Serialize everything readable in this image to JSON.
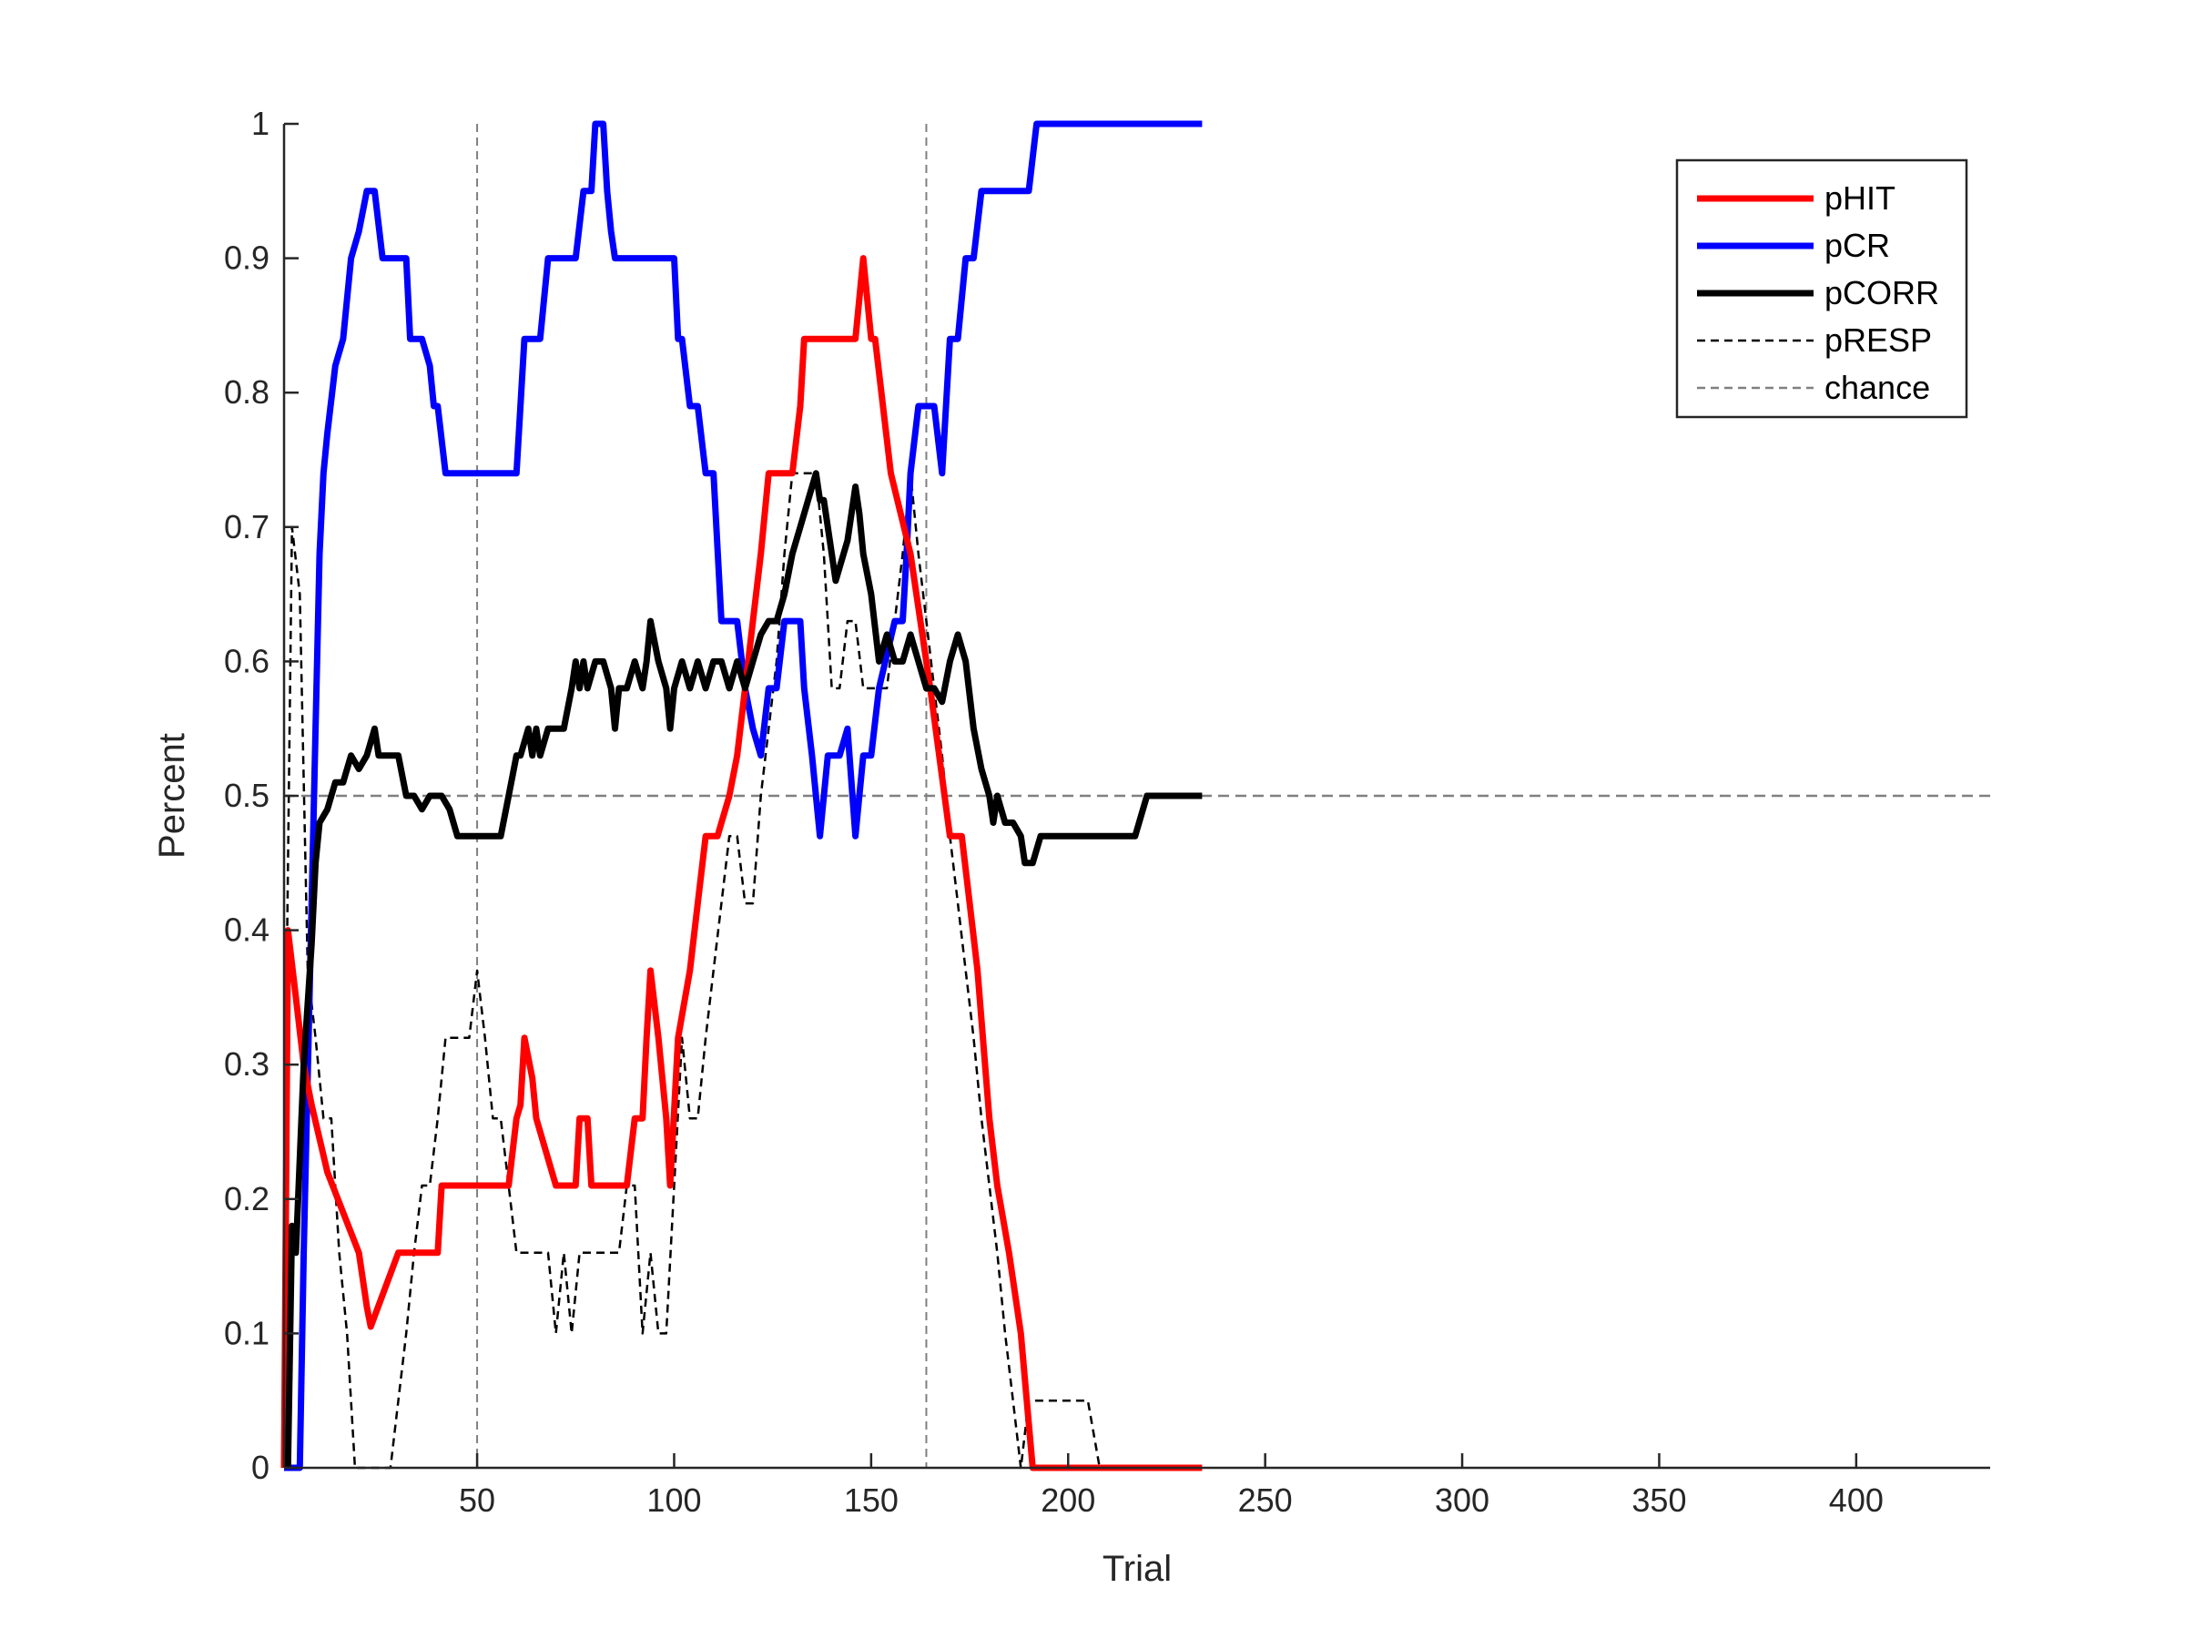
{
  "chart_data": {
    "type": "line",
    "xlabel": "Trial",
    "ylabel": "Percent",
    "xlim": [
      1,
      434
    ],
    "ylim": [
      0,
      1
    ],
    "xticks": [
      50,
      100,
      150,
      200,
      250,
      300,
      350,
      400
    ],
    "yticks": [
      0,
      0.1,
      0.2,
      0.3,
      0.4,
      0.5,
      0.6,
      0.7,
      0.8,
      0.9,
      1
    ],
    "grid": false,
    "legend_position": "top-right",
    "vlines": [
      50,
      164
    ],
    "series": [
      {
        "name": "pHIT",
        "color": "#ff0000",
        "style": "solid",
        "x": [
          1,
          2,
          4,
          6,
          8,
          12,
          16,
          20,
          22,
          23,
          30,
          40,
          41,
          50,
          58,
          60,
          61,
          62,
          64,
          65,
          70,
          75,
          76,
          78,
          79,
          84,
          85,
          88,
          90,
          92,
          93,
          94,
          96,
          98,
          99,
          101,
          104,
          106,
          108,
          110,
          111,
          114,
          116,
          118,
          120,
          122,
          124,
          126,
          130,
          132,
          133,
          140,
          146,
          148,
          150,
          151,
          155,
          160,
          165,
          170,
          173,
          175,
          177,
          180,
          182,
          185,
          188,
          191,
          200,
          210,
          220,
          234
        ],
        "y": [
          0,
          0.4,
          0.35,
          0.3,
          0.27,
          0.22,
          0.19,
          0.16,
          0.12,
          0.105,
          0.16,
          0.16,
          0.21,
          0.21,
          0.21,
          0.26,
          0.27,
          0.32,
          0.29,
          0.26,
          0.21,
          0.21,
          0.26,
          0.26,
          0.21,
          0.21,
          0.21,
          0.21,
          0.26,
          0.26,
          0.32,
          0.37,
          0.32,
          0.26,
          0.21,
          0.32,
          0.37,
          0.42,
          0.47,
          0.47,
          0.47,
          0.5,
          0.53,
          0.58,
          0.63,
          0.68,
          0.74,
          0.74,
          0.74,
          0.79,
          0.84,
          0.84,
          0.84,
          0.9,
          0.84,
          0.84,
          0.74,
          0.68,
          0.58,
          0.47,
          0.47,
          0.42,
          0.37,
          0.26,
          0.21,
          0.16,
          0.1,
          0,
          0,
          0,
          0,
          0
        ]
      },
      {
        "name": "pCR",
        "color": "#0000ff",
        "style": "solid",
        "x": [
          1,
          5,
          6,
          8,
          9,
          10,
          11,
          12,
          14,
          16,
          18,
          20,
          22,
          24,
          26,
          28,
          32,
          33,
          36,
          38,
          39,
          40,
          42,
          44,
          52,
          60,
          62,
          64,
          66,
          68,
          70,
          75,
          77,
          78,
          79,
          80,
          81,
          82,
          83,
          84,
          85,
          88,
          90,
          92,
          98,
          100,
          101,
          102,
          104,
          106,
          108,
          110,
          112,
          116,
          118,
          120,
          122,
          124,
          126,
          128,
          130,
          132,
          133,
          135,
          137,
          139,
          140,
          142,
          144,
          146,
          148,
          149,
          150,
          152,
          156,
          157,
          158,
          159,
          160,
          162,
          164,
          166,
          168,
          170,
          172,
          174,
          176,
          178,
          180,
          181,
          182,
          184,
          186,
          188,
          190,
          192,
          196,
          200,
          205,
          210,
          215,
          218,
          225,
          234
        ],
        "y": [
          0,
          0,
          0.16,
          0.42,
          0.55,
          0.68,
          0.74,
          0.77,
          0.82,
          0.84,
          0.9,
          0.92,
          0.95,
          0.95,
          0.9,
          0.9,
          0.9,
          0.84,
          0.84,
          0.82,
          0.79,
          0.79,
          0.74,
          0.74,
          0.74,
          0.74,
          0.84,
          0.84,
          0.84,
          0.9,
          0.9,
          0.9,
          0.95,
          0.95,
          0.95,
          1,
          1,
          1,
          0.95,
          0.92,
          0.9,
          0.9,
          0.9,
          0.9,
          0.9,
          0.9,
          0.84,
          0.84,
          0.79,
          0.79,
          0.74,
          0.74,
          0.63,
          0.63,
          0.58,
          0.55,
          0.53,
          0.58,
          0.58,
          0.63,
          0.63,
          0.63,
          0.58,
          0.53,
          0.47,
          0.53,
          0.53,
          0.53,
          0.55,
          0.47,
          0.53,
          0.53,
          0.53,
          0.58,
          0.63,
          0.63,
          0.63,
          0.68,
          0.74,
          0.79,
          0.79,
          0.79,
          0.74,
          0.84,
          0.84,
          0.9,
          0.9,
          0.95,
          0.95,
          0.95,
          0.95,
          0.95,
          0.95,
          0.95,
          0.95,
          1,
          1,
          1,
          1,
          1,
          1,
          1,
          1,
          1
        ]
      },
      {
        "name": "pCORR",
        "color": "#000000",
        "style": "solid",
        "x": [
          2,
          3,
          4,
          6,
          8,
          9,
          10,
          12,
          14,
          16,
          18,
          20,
          22,
          24,
          25,
          26,
          28,
          30,
          32,
          34,
          36,
          38,
          40,
          41,
          43,
          45,
          50,
          56,
          58,
          60,
          61,
          63,
          64,
          65,
          66,
          68,
          70,
          72,
          74,
          75,
          76,
          77,
          78,
          80,
          82,
          84,
          85,
          86,
          88,
          90,
          92,
          93,
          94,
          96,
          98,
          99,
          100,
          102,
          104,
          106,
          108,
          110,
          112,
          114,
          116,
          118,
          120,
          122,
          124,
          126,
          128,
          130,
          132,
          134,
          136,
          137,
          138,
          140,
          141,
          142,
          144,
          146,
          147,
          148,
          150,
          152,
          154,
          156,
          158,
          160,
          162,
          164,
          166,
          168,
          170,
          172,
          174,
          176,
          178,
          180,
          181,
          182,
          184,
          186,
          188,
          189,
          191,
          193,
          196,
          200,
          210,
          217,
          220,
          234
        ],
        "y": [
          0,
          0.18,
          0.16,
          0.3,
          0.39,
          0.45,
          0.48,
          0.49,
          0.51,
          0.51,
          0.53,
          0.52,
          0.53,
          0.55,
          0.53,
          0.53,
          0.53,
          0.53,
          0.5,
          0.5,
          0.49,
          0.5,
          0.5,
          0.5,
          0.49,
          0.47,
          0.47,
          0.47,
          0.5,
          0.53,
          0.53,
          0.55,
          0.53,
          0.55,
          0.53,
          0.55,
          0.55,
          0.55,
          0.58,
          0.6,
          0.58,
          0.6,
          0.58,
          0.6,
          0.6,
          0.58,
          0.55,
          0.58,
          0.58,
          0.6,
          0.58,
          0.6,
          0.63,
          0.6,
          0.58,
          0.55,
          0.58,
          0.6,
          0.58,
          0.6,
          0.58,
          0.6,
          0.6,
          0.58,
          0.6,
          0.58,
          0.6,
          0.62,
          0.63,
          0.63,
          0.65,
          0.68,
          0.7,
          0.72,
          0.74,
          0.72,
          0.72,
          0.68,
          0.66,
          0.67,
          0.69,
          0.73,
          0.71,
          0.68,
          0.65,
          0.6,
          0.62,
          0.6,
          0.6,
          0.62,
          0.6,
          0.58,
          0.58,
          0.57,
          0.6,
          0.62,
          0.6,
          0.55,
          0.52,
          0.5,
          0.48,
          0.5,
          0.48,
          0.48,
          0.47,
          0.45,
          0.45,
          0.47,
          0.47,
          0.47,
          0.47,
          0.47,
          0.5,
          0.5
        ]
      },
      {
        "name": "pRESP",
        "color": "#000000",
        "style": "dashed",
        "x": [
          1,
          3,
          5,
          7,
          9,
          11,
          13,
          15,
          17,
          19,
          20,
          28,
          30,
          32,
          34,
          36,
          38,
          40,
          42,
          44,
          46,
          48,
          50,
          52,
          54,
          56,
          58,
          60,
          62,
          64,
          66,
          68,
          70,
          72,
          74,
          76,
          78,
          80,
          82,
          84,
          86,
          88,
          90,
          92,
          94,
          96,
          98,
          100,
          102,
          104,
          106,
          108,
          110,
          112,
          114,
          116,
          118,
          120,
          122,
          124,
          126,
          128,
          130,
          132,
          134,
          136,
          138,
          140,
          142,
          144,
          146,
          148,
          150,
          152,
          154,
          156,
          158,
          160,
          162,
          164,
          166,
          168,
          170,
          172,
          174,
          176,
          178,
          180,
          182,
          184,
          186,
          188,
          190,
          195,
          200,
          205,
          208,
          215,
          234
        ],
        "y": [
          0.2,
          0.7,
          0.65,
          0.37,
          0.32,
          0.26,
          0.26,
          0.16,
          0.1,
          0,
          0,
          0,
          0.05,
          0.1,
          0.16,
          0.21,
          0.21,
          0.26,
          0.32,
          0.32,
          0.32,
          0.32,
          0.37,
          0.32,
          0.26,
          0.26,
          0.21,
          0.16,
          0.16,
          0.16,
          0.16,
          0.16,
          0.1,
          0.16,
          0.1,
          0.16,
          0.16,
          0.16,
          0.16,
          0.16,
          0.16,
          0.21,
          0.21,
          0.1,
          0.16,
          0.1,
          0.1,
          0.21,
          0.32,
          0.26,
          0.26,
          0.32,
          0.37,
          0.42,
          0.47,
          0.47,
          0.42,
          0.42,
          0.5,
          0.55,
          0.6,
          0.68,
          0.74,
          0.74,
          0.74,
          0.74,
          0.68,
          0.58,
          0.58,
          0.63,
          0.63,
          0.58,
          0.58,
          0.58,
          0.58,
          0.63,
          0.68,
          0.74,
          0.68,
          0.63,
          0.58,
          0.53,
          0.47,
          0.42,
          0.37,
          0.32,
          0.26,
          0.21,
          0.16,
          0.1,
          0.05,
          0,
          0.05,
          0.05,
          0.05,
          0.05,
          0,
          0,
          0
        ]
      },
      {
        "name": "chance",
        "color": "#808080",
        "style": "dashed",
        "x": [
          1,
          434
        ],
        "y": [
          0.5,
          0.5
        ]
      }
    ]
  }
}
